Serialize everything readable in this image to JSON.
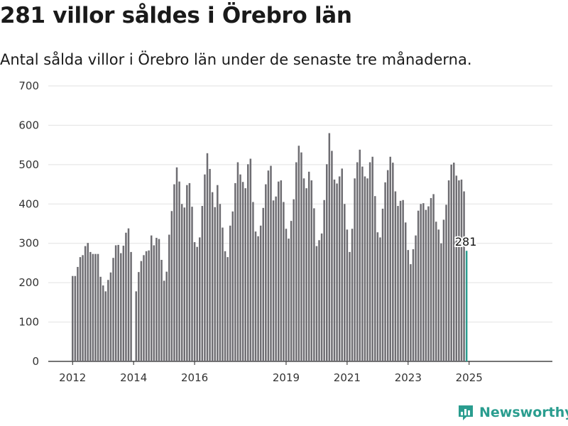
{
  "title": "281 villor såldes i Örebro län",
  "subtitle": "Antal sålda villor i Örebro län under de senaste tre månaderna.",
  "brand": {
    "name": "Newsworthy",
    "icon": "newsworthy-logo-icon",
    "color": "#2a9d8f"
  },
  "chart_data": {
    "type": "bar",
    "x_ticks": [
      "2012",
      "2014",
      "2016",
      "2019",
      "2021",
      "2023",
      "2025"
    ],
    "y_ticks": [
      0,
      100,
      200,
      300,
      400,
      500,
      600,
      700
    ],
    "ylim": [
      0,
      700
    ],
    "grid": true,
    "bar_color": "#6e6d72",
    "highlight_color": "#2a9d8f",
    "highlight_label": "281",
    "values": [
      217,
      217,
      240,
      265,
      270,
      293,
      301,
      278,
      273,
      273,
      273,
      215,
      193,
      178,
      207,
      226,
      263,
      295,
      296,
      275,
      294,
      327,
      338,
      278,
      0,
      178,
      227,
      255,
      270,
      280,
      282,
      320,
      295,
      314,
      311,
      258,
      205,
      228,
      322,
      382,
      450,
      493,
      457,
      400,
      391,
      448,
      453,
      393,
      303,
      291,
      315,
      395,
      475,
      529,
      489,
      430,
      392,
      448,
      400,
      340,
      280,
      265,
      345,
      381,
      453,
      506,
      475,
      456,
      440,
      501,
      515,
      405,
      330,
      318,
      345,
      390,
      450,
      485,
      497,
      409,
      419,
      457,
      460,
      405,
      337,
      312,
      357,
      412,
      506,
      548,
      531,
      465,
      440,
      482,
      460,
      389,
      293,
      308,
      325,
      410,
      501,
      580,
      535,
      462,
      452,
      470,
      490,
      400,
      335,
      278,
      337,
      465,
      506,
      538,
      495,
      470,
      465,
      506,
      520,
      420,
      328,
      315,
      388,
      455,
      486,
      520,
      505,
      432,
      395,
      408,
      410,
      353,
      283,
      247,
      285,
      320,
      383,
      400,
      402,
      385,
      394,
      415,
      425,
      355,
      335,
      300,
      360,
      398,
      460,
      500,
      505,
      472,
      460,
      462,
      432,
      281
    ]
  }
}
